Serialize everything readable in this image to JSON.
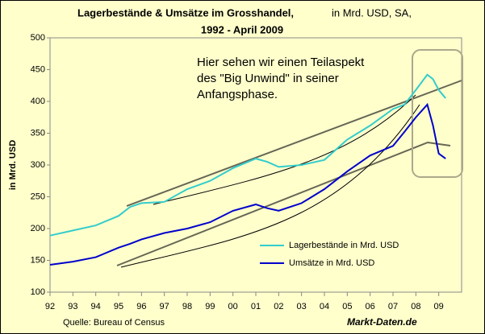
{
  "chart_data": {
    "type": "line",
    "title": "Lagerbestände & Umsätze im Grosshandel,",
    "subtitle": "in Mrd. USD, SA,",
    "title_line2": "1992 - April 2009",
    "y_label": "in Mrd. USD",
    "annotation": [
      "Hier sehen wir einen Teilaspekt",
      "des \"Big Unwind\" in seiner",
      "Anfangsphase."
    ],
    "source": "Quelle: Bureau of Census",
    "brand": "Markt-Daten.de",
    "x": [
      1992,
      1993,
      1994,
      1995,
      1995.5,
      1996,
      1997,
      1998,
      1999,
      2000,
      2001,
      2001.5,
      2002,
      2003,
      2004,
      2005,
      2006,
      2007,
      2007.5,
      2008,
      2008.5,
      2008.75,
      2009,
      2009.3
    ],
    "series": [
      {
        "name": "Lagerbestände in Mrd. USD",
        "color": "#33cccc",
        "values": [
          189,
          197,
          205,
          220,
          234,
          240,
          242,
          262,
          275,
          295,
          310,
          305,
          297,
          300,
          308,
          340,
          362,
          388,
          395,
          418,
          442,
          435,
          418,
          405
        ]
      },
      {
        "name": "Umsätze in Mrd. USD",
        "color": "#0000cc",
        "values": [
          143,
          148,
          155,
          170,
          176,
          183,
          193,
          200,
          210,
          228,
          238,
          232,
          228,
          240,
          262,
          290,
          315,
          330,
          352,
          375,
          395,
          362,
          318,
          310
        ]
      }
    ],
    "xlim": [
      1992,
      2010
    ],
    "xticks": [
      {
        "value": 1992,
        "label": "92"
      },
      {
        "value": 1993,
        "label": "93"
      },
      {
        "value": 1994,
        "label": "94"
      },
      {
        "value": 1995,
        "label": "95"
      },
      {
        "value": 1996,
        "label": "96"
      },
      {
        "value": 1997,
        "label": "97"
      },
      {
        "value": 1998,
        "label": "98"
      },
      {
        "value": 1999,
        "label": "99"
      },
      {
        "value": 2000,
        "label": "00"
      },
      {
        "value": 2001,
        "label": "01"
      },
      {
        "value": 2002,
        "label": "02"
      },
      {
        "value": 2003,
        "label": "03"
      },
      {
        "value": 2004,
        "label": "04"
      },
      {
        "value": 2005,
        "label": "05"
      },
      {
        "value": 2006,
        "label": "06"
      },
      {
        "value": 2007,
        "label": "07"
      },
      {
        "value": 2008,
        "label": "08"
      },
      {
        "value": 2009,
        "label": "09"
      }
    ],
    "ylim": [
      100,
      500
    ],
    "yticks": [
      100,
      150,
      200,
      250,
      300,
      350,
      400,
      450,
      500
    ]
  }
}
